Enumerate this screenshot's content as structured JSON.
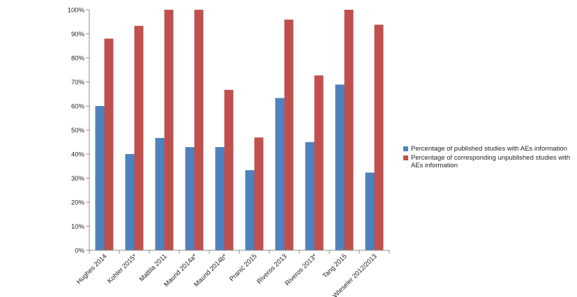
{
  "chart_data": {
    "type": "bar",
    "categories": [
      "Hughes 2014",
      "Kohler 2015*",
      "Mattila 2011",
      "Maund 2014a*",
      "Maund 2014b*",
      "Pranić  2015",
      "Riveros 2013",
      "Riveros 2013*",
      "Tang 2015",
      "Wieseler 2012/2013"
    ],
    "series": [
      {
        "name": "Percentage of published studies with AEs information",
        "color": "#4f81bd",
        "values": [
          60,
          40,
          46.7,
          42.9,
          42.9,
          33.3,
          63.3,
          45,
          68.9,
          32.3
        ]
      },
      {
        "name": "Percentage of corresponding unpublished studies with AEs information",
        "color": "#c0504d",
        "values": [
          88,
          93.3,
          100,
          100,
          66.7,
          46.9,
          95.9,
          72.7,
          100,
          93.8
        ]
      }
    ],
    "yticks": [
      "0%",
      "10%",
      "20%",
      "30%",
      "40%",
      "50%",
      "60%",
      "70%",
      "80%",
      "90%",
      "100%"
    ],
    "ylim": [
      0,
      100
    ],
    "title": "",
    "xlabel": "",
    "ylabel": "",
    "legend_position": "right",
    "grid": false
  }
}
